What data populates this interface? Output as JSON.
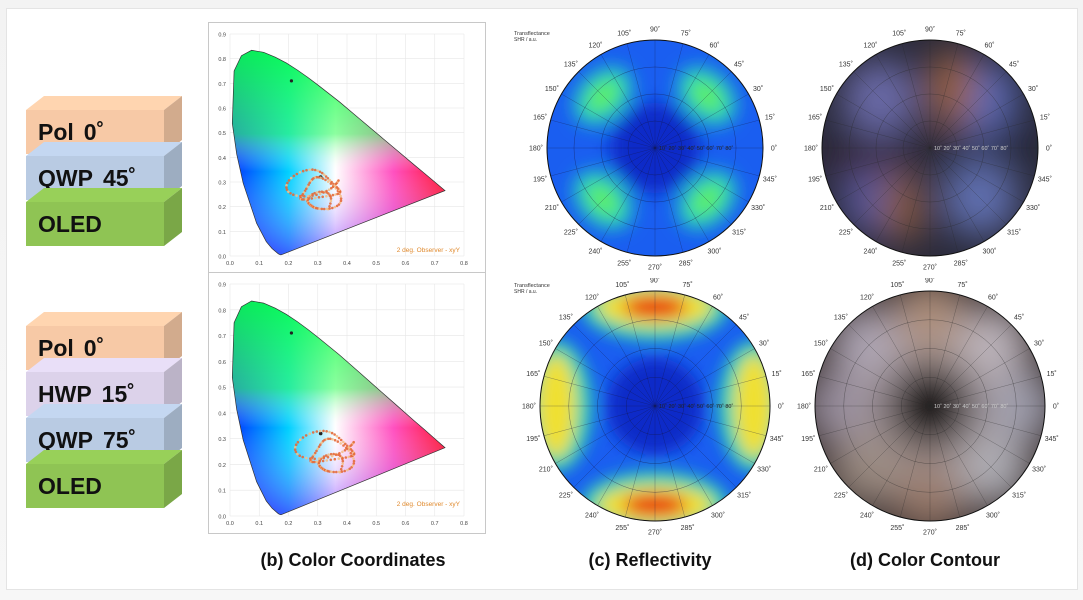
{
  "stack_top": {
    "layers": [
      {
        "label": "Pol",
        "angle": "0˚",
        "color": "#f7c9a6"
      },
      {
        "label": "QWP",
        "angle": "45˚",
        "color": "#b9cbe3"
      },
      {
        "label": "OLED",
        "angle": "",
        "color": "#8fc454"
      }
    ]
  },
  "stack_bottom": {
    "layers": [
      {
        "label": "Pol",
        "angle": "0˚",
        "color": "#f7c9a6"
      },
      {
        "label": "HWP",
        "angle": "15˚",
        "color": "#dcd2ea"
      },
      {
        "label": "QWP",
        "angle": "75˚",
        "color": "#b9cbe3"
      },
      {
        "label": "OLED",
        "angle": "",
        "color": "#8fc454"
      }
    ]
  },
  "cie": {
    "observer_label": "2 deg. Observer - xyY",
    "x_ticks": [
      "0.0",
      "0.1",
      "0.2",
      "0.3",
      "0.4",
      "0.5",
      "0.6",
      "0.7",
      "0.8"
    ],
    "y_ticks_top": [
      "0.9",
      "0.8",
      "0.7",
      "0.6",
      "0.5",
      "0.4",
      "0.3",
      "0.2",
      "0.1",
      "0.0"
    ],
    "y_ticks_bottom": [
      "0.9",
      "0.8",
      "0.7",
      "0.6",
      "0.5",
      "0.4",
      "0.3",
      "0.2",
      "0.1",
      "0.0"
    ]
  },
  "polar": {
    "title": "Transflectance",
    "subtitle": "SHR / a.u.",
    "angles": [
      "0˚",
      "15˚",
      "30˚",
      "45˚",
      "60˚",
      "75˚",
      "90˚",
      "105˚",
      "120˚",
      "135˚",
      "150˚",
      "165˚",
      "180˚",
      "195˚",
      "210˚",
      "225˚",
      "240˚",
      "255˚",
      "270˚",
      "285˚",
      "300˚",
      "315˚",
      "330˚",
      "345˚"
    ],
    "radial_labels": "10˚ 20˚ 30˚ 40˚ 50˚ 60˚ 70˚ 80˚"
  },
  "captions": {
    "b": "(b) Color Coordinates",
    "c": "(c) Reflectivity",
    "d": "(d) Color Contour"
  }
}
